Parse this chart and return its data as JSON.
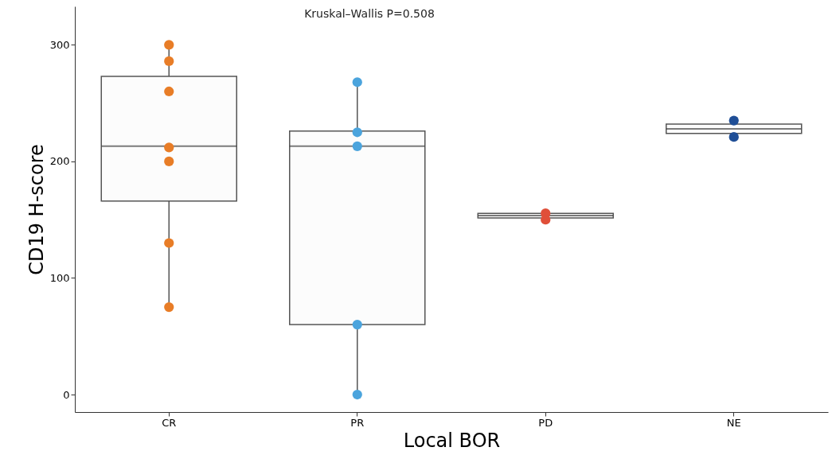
{
  "chart_data": {
    "type": "box",
    "xlabel": "Local BOR",
    "ylabel": "CD19 H-score",
    "annotations": [
      "Kruskal–Wallis P=0.508"
    ],
    "categories": [
      "CR",
      "PR",
      "PD",
      "NE"
    ],
    "ylim": [
      -15,
      333
    ],
    "yticks": [
      0,
      100,
      200,
      300
    ],
    "marker": "circle",
    "boxes": [
      {
        "low": 76,
        "q1": 166,
        "median": 213,
        "q3": 273,
        "high": 300
      },
      {
        "low": 0,
        "q1": 60,
        "median": 213,
        "q3": 226,
        "high": 268
      },
      {
        "low": 150,
        "q1": 151.5,
        "median": 153.5,
        "q3": 155.5,
        "high": 155.5
      },
      {
        "low": 221,
        "q1": 224,
        "median": 228,
        "q3": 232,
        "high": 235
      }
    ],
    "series": [
      {
        "type": "scatter",
        "color": "#e87d27",
        "x": [
          "CR",
          "CR",
          "CR",
          "CR",
          "CR",
          "CR",
          "CR"
        ],
        "values": [
          300,
          286,
          260,
          212,
          200,
          130,
          75
        ]
      },
      {
        "type": "scatter",
        "color": "#4ba4dd",
        "x": [
          "PR",
          "PR",
          "PR",
          "PR",
          "PR"
        ],
        "values": [
          268,
          225,
          213,
          60,
          0
        ]
      },
      {
        "type": "scatter",
        "color": "#e04f39",
        "x": [
          "PD",
          "PD"
        ],
        "values": [
          155.5,
          150
        ]
      },
      {
        "type": "scatter",
        "color": "#1f4e96",
        "x": [
          "NE",
          "NE"
        ],
        "values": [
          235,
          221
        ]
      }
    ]
  }
}
